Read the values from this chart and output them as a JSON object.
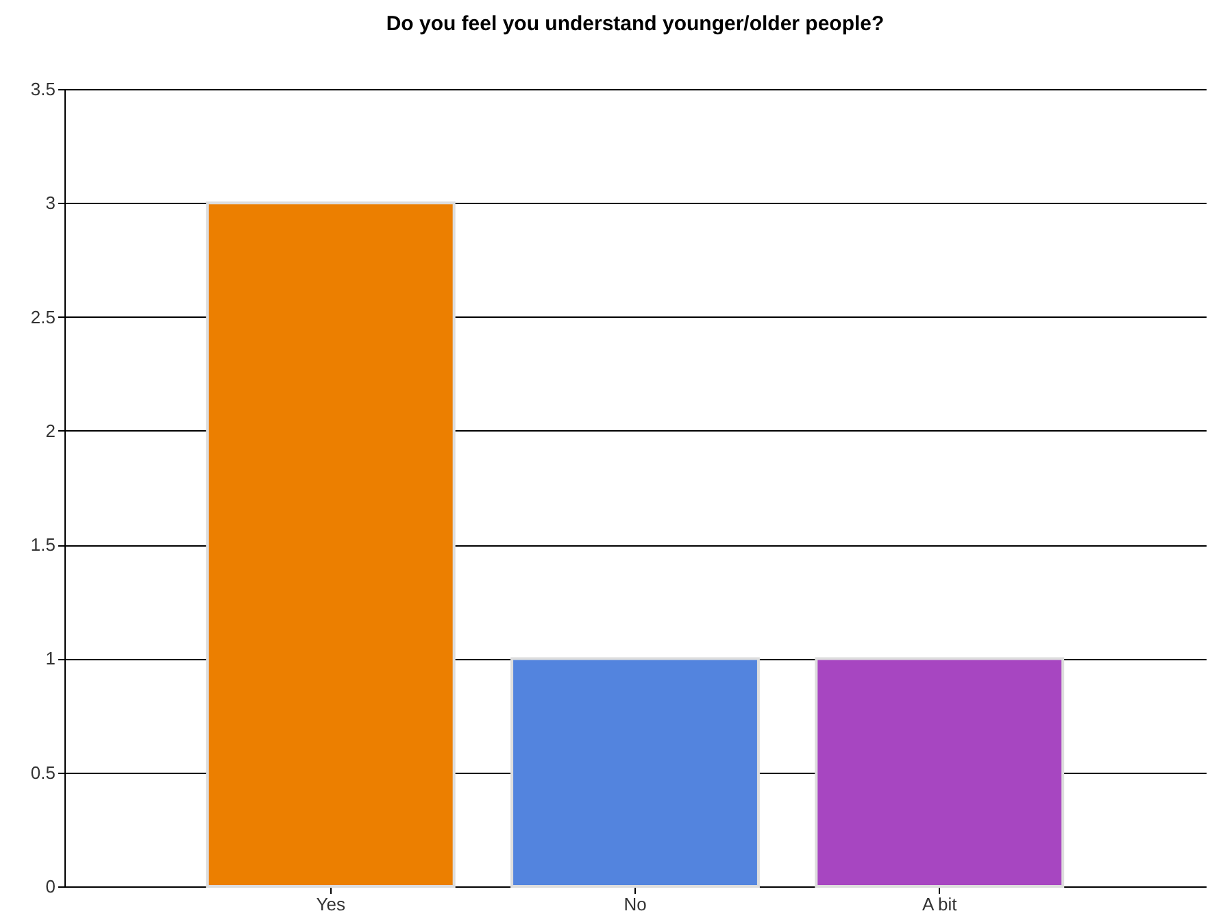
{
  "chart_data": {
    "type": "bar",
    "title": "Do you feel you understand younger/older people?",
    "categories": [
      "Yes",
      "No",
      "A bit"
    ],
    "values": [
      3,
      1,
      1
    ],
    "colors": [
      "#ec7f00",
      "#5384de",
      "#a746c1"
    ],
    "ylim": [
      0,
      3.5
    ],
    "yticks": [
      0,
      0.5,
      1,
      1.5,
      2,
      2.5,
      3,
      3.5
    ],
    "grid": true
  }
}
